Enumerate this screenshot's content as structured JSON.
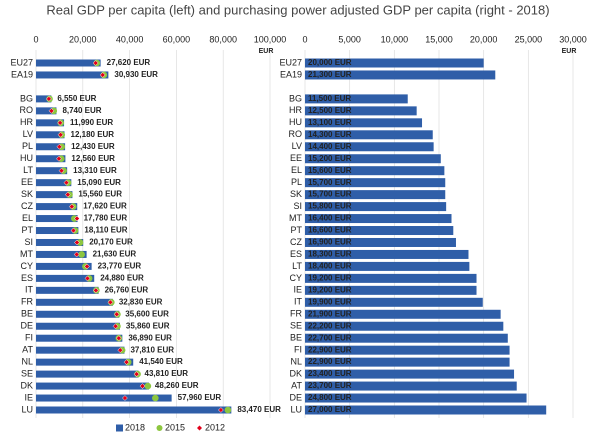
{
  "title": "Real GDP per capita (left) and purchasing power adjusted GDP per capita (right - 2018)",
  "chart_data": [
    {
      "type": "bar",
      "orientation": "horizontal",
      "x_unit": "EUR",
      "categories": [
        "EU27",
        "EA19",
        null,
        "BG",
        "RO",
        "HR",
        "LV",
        "PL",
        "HU",
        "LT",
        "EE",
        "SK",
        "CZ",
        "EL",
        "PT",
        "SI",
        "MT",
        "CY",
        "ES",
        "IT",
        "FR",
        "BE",
        "DE",
        "FI",
        "AT",
        "NL",
        "SE",
        "DK",
        "IE",
        "LU"
      ],
      "series": [
        {
          "name": "2018",
          "color": "#2f5ea8",
          "marker": "bar",
          "values": [
            27620,
            30930,
            null,
            6550,
            8740,
            11990,
            12180,
            12430,
            12560,
            13310,
            15090,
            15560,
            17620,
            17780,
            18110,
            20170,
            21630,
            23770,
            24880,
            26760,
            32830,
            35600,
            35860,
            36890,
            37810,
            41540,
            43810,
            48260,
            57960,
            83470
          ],
          "value_labels": [
            "27,620 EUR",
            "30,930 EUR",
            null,
            "6,550 EUR",
            "8,740 EUR",
            "11,990 EUR",
            "12,180 EUR",
            "12,430 EUR",
            "12,560 EUR",
            "13,310 EUR",
            "15,090 EUR",
            "15,560 EUR",
            "17,620 EUR",
            "17,780 EUR",
            "18,110 EUR",
            "20,170 EUR",
            "21,630 EUR",
            "23,770 EUR",
            "24,880 EUR",
            "26,760 EUR",
            "32,830 EUR",
            "35,600 EUR",
            "35,860 EUR",
            "36,890 EUR",
            "37,810 EUR",
            "41,540 EUR",
            "43,810 EUR",
            "48,260 EUR",
            "57,960 EUR",
            "83,470 EUR"
          ]
        },
        {
          "name": "2015",
          "color": "#8dc63f",
          "marker": "circle",
          "values": [
            26000,
            29000,
            null,
            5800,
            7600,
            10600,
            11000,
            11000,
            10800,
            11800,
            13700,
            14300,
            15900,
            16400,
            16700,
            18800,
            19500,
            21100,
            22700,
            25800,
            32200,
            34800,
            34800,
            35400,
            36800,
            39400,
            43400,
            47800,
            51000,
            82000
          ]
        },
        {
          "name": "2012",
          "color": "#e2001a",
          "marker": "diamond",
          "values": [
            25500,
            28500,
            null,
            5500,
            6600,
            10300,
            10500,
            10000,
            9800,
            10900,
            13000,
            13600,
            15300,
            17500,
            16000,
            17500,
            17400,
            21800,
            22000,
            25600,
            31800,
            34500,
            34000,
            35400,
            36000,
            38700,
            43000,
            45500,
            38000,
            79000
          ]
        }
      ],
      "xlim": [
        0,
        100000
      ],
      "xticks": [
        0,
        {
          "value": 20000,
          "label": "20,000"
        },
        {
          "value": 40000,
          "label": "40,000"
        },
        {
          "value": 60000,
          "label": "60,000"
        },
        {
          "value": 80000,
          "label": "80,000"
        },
        {
          "value": 100000,
          "label": "100,000"
        }
      ],
      "grid": true,
      "legend": "bottom"
    },
    {
      "type": "bar",
      "orientation": "horizontal",
      "x_unit": "EUR",
      "categories": [
        "EU27",
        "EA19",
        null,
        "BG",
        "HR",
        "HU",
        "RO",
        "LV",
        "EE",
        "EL",
        "PL",
        "SK",
        "SI",
        "MT",
        "PT",
        "CZ",
        "ES",
        "LT",
        "CY",
        "IE",
        "IT",
        "FR",
        "SE",
        "BE",
        "FI",
        "NL",
        "DK",
        "AT",
        "DE",
        "LU"
      ],
      "color": "#2f5ea8",
      "values": [
        20000,
        21300,
        null,
        11500,
        12500,
        13100,
        14300,
        14400,
        15200,
        15600,
        15700,
        15700,
        15800,
        16400,
        16600,
        16900,
        18300,
        18400,
        19200,
        19200,
        19900,
        21900,
        22200,
        22700,
        22900,
        22900,
        23400,
        23700,
        24800,
        27000
      ],
      "value_labels": [
        "20,000 EUR",
        "21,300 EUR",
        null,
        "11,500 EUR",
        "12,500 EUR",
        "13,100 EUR",
        "14,300 EUR",
        "14,400 EUR",
        "15,200 EUR",
        "15,600 EUR",
        "15,700 EUR",
        "15,700 EUR",
        "15,800 EUR",
        "16,400 EUR",
        "16,600 EUR",
        "16,900 EUR",
        "18,300 EUR",
        "18,400 EUR",
        "19,200 EUR",
        "19,200 EUR",
        "19,900 EUR",
        "21,900 EUR",
        "22,200 EUR",
        "22,700 EUR",
        "22,900 EUR",
        "22,900 EUR",
        "23,400 EUR",
        "23,700 EUR",
        "24,800 EUR",
        "27,000 EUR"
      ],
      "xlim": [
        0,
        30000
      ],
      "xticks": [
        0,
        {
          "value": 5000,
          "label": "5,000"
        },
        {
          "value": 10000,
          "label": "10,000"
        },
        {
          "value": 15000,
          "label": "15,000"
        },
        {
          "value": 20000,
          "label": "20,000"
        },
        {
          "value": 25000,
          "label": "25,000"
        },
        {
          "value": 30000,
          "label": "30,000"
        }
      ],
      "grid": true
    }
  ]
}
